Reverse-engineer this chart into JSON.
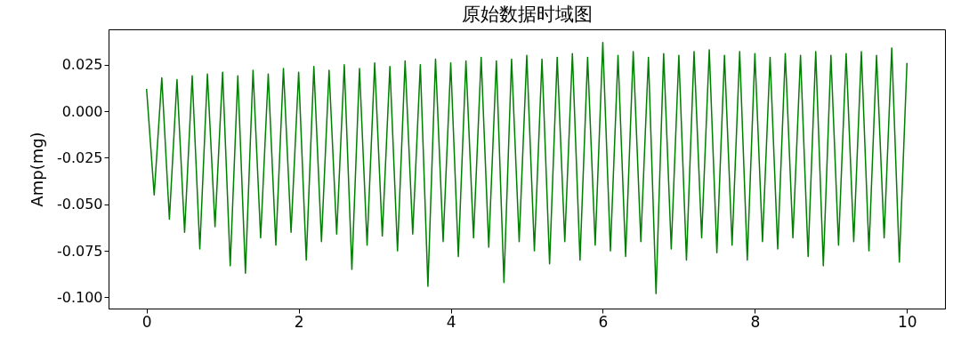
{
  "chart_data": {
    "type": "line",
    "title": "原始数据时域图",
    "ylabel": "Amp(mg)",
    "x": [
      0,
      0.1,
      0.2,
      0.3,
      0.4,
      0.5,
      0.6,
      0.7,
      0.8,
      0.9,
      1,
      1.1,
      1.2,
      1.3,
      1.4,
      1.5,
      1.6,
      1.7,
      1.8,
      1.9,
      2,
      2.1,
      2.2,
      2.3,
      2.4,
      2.5,
      2.6,
      2.7,
      2.8,
      2.9,
      3,
      3.1,
      3.2,
      3.3,
      3.4,
      3.5,
      3.6,
      3.7,
      3.8,
      3.9,
      4,
      4.1,
      4.2,
      4.3,
      4.4,
      4.5,
      4.6,
      4.7,
      4.8,
      4.9,
      5,
      5.1,
      5.2,
      5.3,
      5.4,
      5.5,
      5.6,
      5.7,
      5.8,
      5.9,
      6,
      6.1,
      6.2,
      6.3,
      6.4,
      6.5,
      6.6,
      6.7,
      6.8,
      6.9,
      7,
      7.1,
      7.2,
      7.3,
      7.4,
      7.5,
      7.6,
      7.7,
      7.8,
      7.9,
      8,
      8.1,
      8.2,
      8.3,
      8.4,
      8.5,
      8.6,
      8.7,
      8.8,
      8.9,
      9,
      9.1,
      9.2,
      9.3,
      9.4,
      9.5,
      9.6,
      9.7,
      9.8,
      9.9,
      10
    ],
    "series": [
      {
        "color": "#008000",
        "values": [
          0.012,
          -0.045,
          0.018,
          -0.058,
          0.017,
          -0.065,
          0.019,
          -0.074,
          0.02,
          -0.062,
          0.021,
          -0.083,
          0.019,
          -0.087,
          0.022,
          -0.068,
          0.02,
          -0.072,
          0.023,
          -0.065,
          0.021,
          -0.08,
          0.024,
          -0.07,
          0.022,
          -0.066,
          0.025,
          -0.085,
          0.023,
          -0.072,
          0.026,
          -0.067,
          0.024,
          -0.075,
          0.027,
          -0.066,
          0.025,
          -0.094,
          0.028,
          -0.07,
          0.026,
          -0.078,
          0.027,
          -0.068,
          0.029,
          -0.073,
          0.027,
          -0.092,
          0.028,
          -0.07,
          0.03,
          -0.075,
          0.028,
          -0.082,
          0.029,
          -0.07,
          0.031,
          -0.08,
          0.029,
          -0.072,
          0.037,
          -0.075,
          0.03,
          -0.078,
          0.032,
          -0.07,
          0.029,
          -0.098,
          0.031,
          -0.074,
          0.03,
          -0.08,
          0.032,
          -0.068,
          0.033,
          -0.076,
          0.03,
          -0.072,
          0.032,
          -0.08,
          0.031,
          -0.07,
          0.029,
          -0.074,
          0.031,
          -0.068,
          0.03,
          -0.078,
          0.032,
          -0.083,
          0.03,
          -0.072,
          0.031,
          -0.07,
          0.032,
          -0.075,
          0.03,
          -0.068,
          0.034,
          -0.081,
          0.026
        ]
      }
    ],
    "xlim": [
      -0.5,
      10.5
    ],
    "xticks": [
      0,
      2,
      4,
      6,
      8,
      10
    ],
    "ylim": [
      -0.106,
      0.044
    ],
    "yticks": [
      {
        "value": -0.1,
        "label": "-0.100"
      },
      {
        "value": -0.075,
        "label": "-0.075"
      },
      {
        "value": -0.05,
        "label": "-0.050"
      },
      {
        "value": -0.025,
        "label": "-0.025"
      },
      {
        "value": 0,
        "label": "0.000"
      },
      {
        "value": 0.025,
        "label": "0.025"
      }
    ],
    "grid": false,
    "line_style": "solid",
    "marker": "none"
  }
}
